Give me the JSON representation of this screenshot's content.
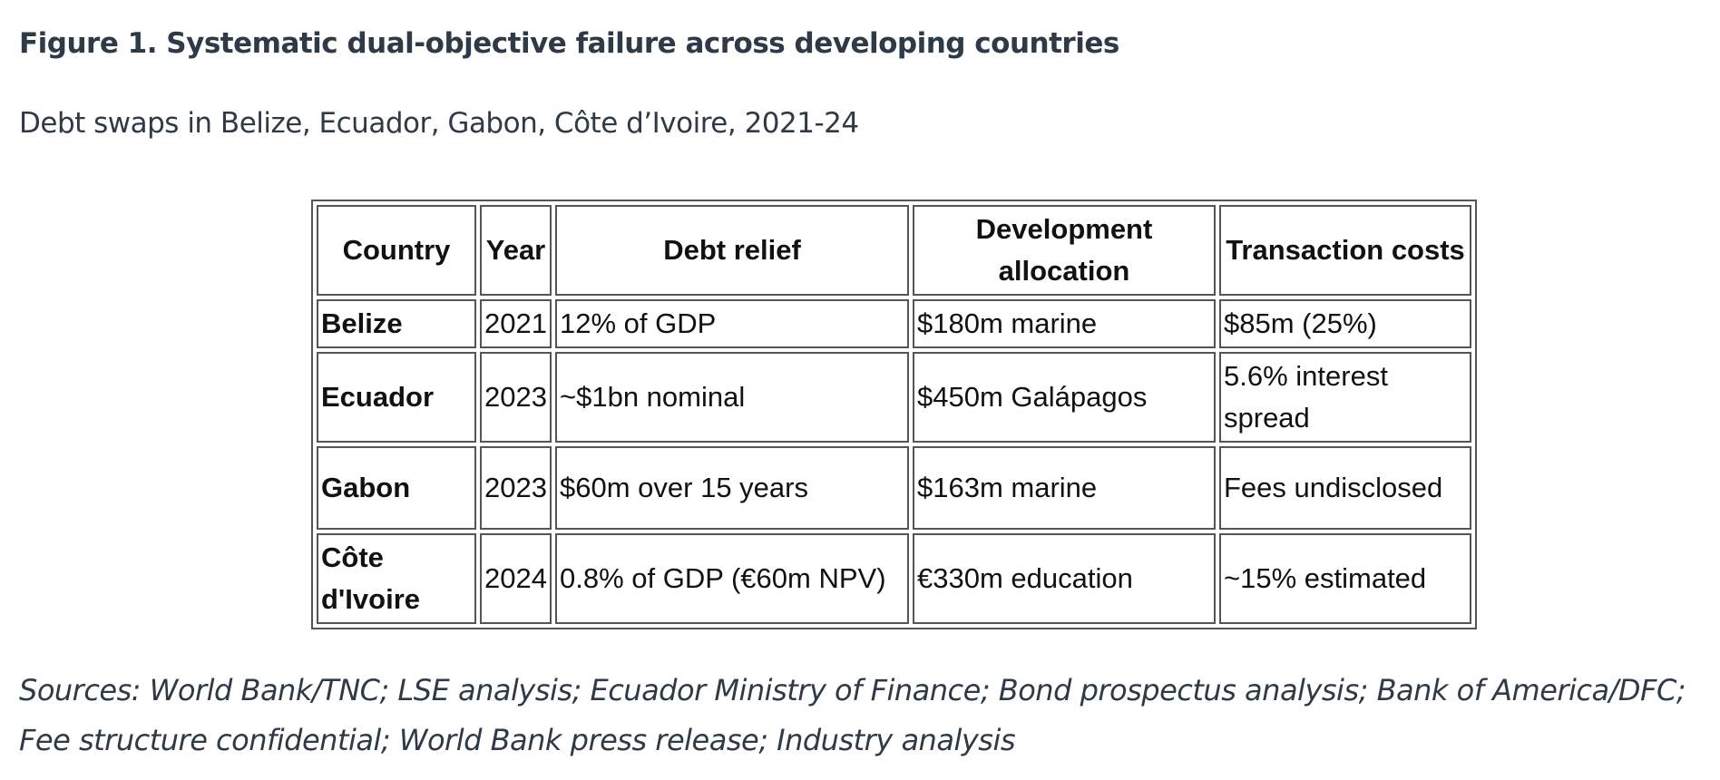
{
  "figure": {
    "title": "Figure 1. Systematic dual-objective failure across developing countries",
    "subtitle": "Debt swaps in Belize, Ecuador, Gabon, Côte d’Ivoire, 2021-24"
  },
  "table": {
    "columns": [
      "Country",
      "Year",
      "Debt relief",
      "Development allocation",
      "Transaction costs"
    ],
    "rows": [
      [
        "Belize",
        "2021",
        "12% of GDP",
        "$180m marine",
        "$85m (25%)"
      ],
      [
        "Ecuador",
        "2023",
        "~$1bn nominal",
        "$450m Galápagos",
        "5.6% interest spread"
      ],
      [
        "Gabon",
        "2023",
        "$60m over 15 years",
        "$163m marine",
        "Fees undisclosed"
      ],
      [
        "Côte d'Ivoire",
        "2024",
        "0.8% of GDP (€60m NPV)",
        "€330m education",
        "~15% estimated"
      ]
    ]
  },
  "sources": "Sources: World Bank/TNC; LSE analysis; Ecuador Ministry of Finance; Bond prospectus analysis; Bank of America/DFC; Fee structure confidential; World Bank press release; Industry analysis"
}
